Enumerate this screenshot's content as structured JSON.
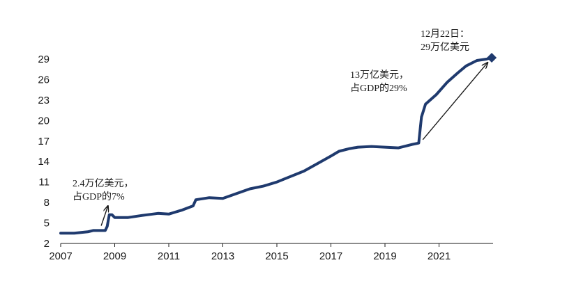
{
  "chart_data": {
    "type": "line",
    "title": "",
    "xlabel": "",
    "ylabel": "",
    "xlim": [
      2007.0,
      2023.0
    ],
    "ylim": [
      2,
      29
    ],
    "x_ticks": [
      2007,
      2009,
      2011,
      2013,
      2015,
      2017,
      2019,
      2021
    ],
    "y_ticks": [
      2,
      5,
      8,
      11,
      14,
      17,
      20,
      23,
      26,
      29
    ],
    "grid": false,
    "legend": "none",
    "line_color": "#1f3a6e",
    "series": [
      {
        "values_xy": [
          [
            2007.0,
            3.5
          ],
          [
            2007.5,
            3.5
          ],
          [
            2008.0,
            3.7
          ],
          [
            2008.2,
            3.9
          ],
          [
            2008.65,
            3.9
          ],
          [
            2008.72,
            4.5
          ],
          [
            2008.8,
            6.2
          ],
          [
            2008.9,
            6.2
          ],
          [
            2009.0,
            5.8
          ],
          [
            2009.5,
            5.8
          ],
          [
            2010.0,
            6.1
          ],
          [
            2010.6,
            6.4
          ],
          [
            2011.0,
            6.3
          ],
          [
            2011.5,
            6.9
          ],
          [
            2011.9,
            7.5
          ],
          [
            2012.0,
            8.4
          ],
          [
            2012.5,
            8.7
          ],
          [
            2013.0,
            8.6
          ],
          [
            2013.5,
            9.3
          ],
          [
            2014.0,
            10.0
          ],
          [
            2014.5,
            10.4
          ],
          [
            2015.0,
            11.0
          ],
          [
            2015.5,
            11.8
          ],
          [
            2016.0,
            12.6
          ],
          [
            2016.5,
            13.7
          ],
          [
            2017.0,
            14.8
          ],
          [
            2017.3,
            15.5
          ],
          [
            2017.7,
            15.9
          ],
          [
            2018.0,
            16.1
          ],
          [
            2018.5,
            16.2
          ],
          [
            2019.0,
            16.1
          ],
          [
            2019.5,
            16.0
          ],
          [
            2020.0,
            16.5
          ],
          [
            2020.25,
            16.7
          ],
          [
            2020.35,
            20.5
          ],
          [
            2020.5,
            22.4
          ],
          [
            2020.9,
            23.8
          ],
          [
            2021.3,
            25.6
          ],
          [
            2021.7,
            27.0
          ],
          [
            2022.0,
            28.0
          ],
          [
            2022.4,
            28.8
          ],
          [
            2022.75,
            29.0
          ],
          [
            2022.95,
            29.2
          ]
        ]
      }
    ],
    "end_marker": [
      2022.95,
      29.2
    ],
    "annotations": [
      {
        "lines": [
          "2.4万亿美元，",
          "占GDP的7%"
        ],
        "arrow_from": [
          2008.5,
          4.6
        ],
        "arrow_to": [
          2008.75,
          7.5
        ]
      },
      {
        "lines": [
          "13万亿美元，",
          "占GDP的29%"
        ],
        "arrow_from": [
          2020.4,
          17.2
        ],
        "arrow_to": [
          2022.8,
          28.5
        ]
      },
      {
        "lines": [
          "12月22日：",
          "29万亿美元"
        ]
      }
    ]
  }
}
